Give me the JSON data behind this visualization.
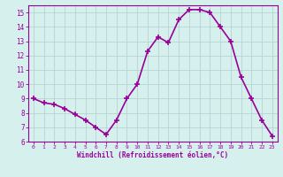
{
  "x": [
    0,
    1,
    2,
    3,
    4,
    5,
    6,
    7,
    8,
    9,
    10,
    11,
    12,
    13,
    14,
    15,
    16,
    17,
    18,
    19,
    20,
    21,
    22,
    23
  ],
  "y": [
    9.0,
    8.7,
    8.6,
    8.3,
    7.9,
    7.5,
    7.0,
    6.5,
    7.5,
    9.0,
    10.0,
    12.3,
    13.3,
    12.9,
    14.5,
    15.2,
    15.2,
    15.0,
    14.0,
    13.0,
    10.5,
    9.0,
    7.5,
    6.4
  ],
  "line_color": "#990099",
  "marker": "+",
  "marker_size": 4,
  "marker_lw": 1.2,
  "bg_color": "#d6f0ee",
  "grid_color": "#b0cece",
  "xlabel": "Windchill (Refroidissement éolien,°C)",
  "tick_color": "#990099",
  "xlim": [
    -0.5,
    23.5
  ],
  "ylim": [
    6,
    15.5
  ],
  "yticks": [
    6,
    7,
    8,
    9,
    10,
    11,
    12,
    13,
    14,
    15
  ],
  "xticks": [
    0,
    1,
    2,
    3,
    4,
    5,
    6,
    7,
    8,
    9,
    10,
    11,
    12,
    13,
    14,
    15,
    16,
    17,
    18,
    19,
    20,
    21,
    22,
    23
  ],
  "spine_color": "#990099",
  "line_width": 1.2
}
